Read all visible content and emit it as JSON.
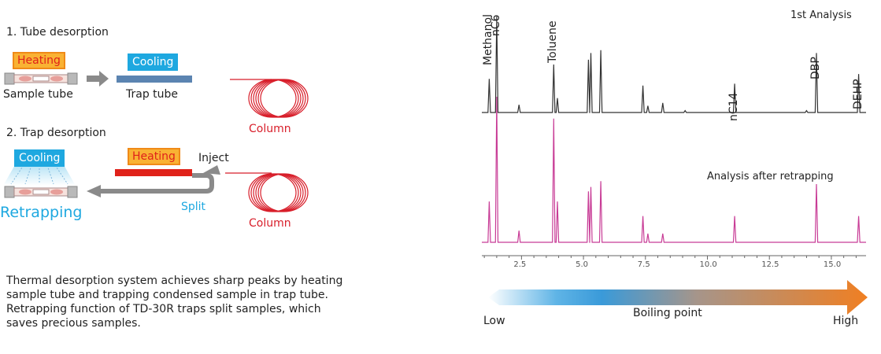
{
  "diagram": {
    "step1": {
      "title": "1. Tube desorption",
      "heating": "Heating",
      "cooling": "Cooling",
      "sample_tube": "Sample tube",
      "trap_tube": "Trap tube",
      "column": "Column"
    },
    "step2": {
      "title": "2. Trap desorption",
      "cooling": "Cooling",
      "heating": "Heating",
      "inject": "Inject",
      "split": "Split",
      "retrapping": "Retrapping",
      "column": "Column"
    },
    "description": [
      "Thermal desorption system achieves sharp peaks by heating",
      "sample tube and trapping condensed sample in trap tube.",
      "Retrapping function of TD-30R traps split samples, which",
      "saves precious samples."
    ],
    "colors": {
      "heating_fill": "#f9b233",
      "heating_text": "#e0221a",
      "cooling": "#1ea8e0",
      "column": "#d81e2a",
      "arrow": "#8a8a8a",
      "trap_tube": "#5b84b1"
    }
  },
  "chart_data": {
    "type": "line",
    "x_ticks": [
      "2.5",
      "5.0",
      "7.5",
      "10.0",
      "12.5",
      "15.0"
    ],
    "peak_labels": [
      "Methanol",
      "nC6",
      "Toluene",
      "nC14",
      "DBP",
      "DEHP"
    ],
    "series": [
      {
        "name": "1st Analysis",
        "color": "#333333",
        "peaks": [
          [
            1.2,
            0.35
          ],
          [
            1.5,
            1.0
          ],
          [
            2.4,
            0.08
          ],
          [
            3.8,
            0.5
          ],
          [
            3.95,
            0.15
          ],
          [
            5.2,
            0.55
          ],
          [
            5.3,
            0.62
          ],
          [
            5.7,
            0.65
          ],
          [
            7.4,
            0.28
          ],
          [
            7.6,
            0.07
          ],
          [
            8.2,
            0.1
          ],
          [
            9.1,
            0.02
          ],
          [
            11.1,
            0.3
          ],
          [
            14.0,
            0.02
          ],
          [
            14.4,
            0.62
          ],
          [
            16.1,
            0.4
          ]
        ]
      },
      {
        "name": "Analysis after retrapping",
        "color": "#c83c96",
        "peaks": [
          [
            1.2,
            0.28
          ],
          [
            1.5,
            1.0
          ],
          [
            2.4,
            0.08
          ],
          [
            3.8,
            0.85
          ],
          [
            3.95,
            0.28
          ],
          [
            5.2,
            0.35
          ],
          [
            5.3,
            0.38
          ],
          [
            5.7,
            0.42
          ],
          [
            7.4,
            0.18
          ],
          [
            7.6,
            0.06
          ],
          [
            8.2,
            0.06
          ],
          [
            11.1,
            0.18
          ],
          [
            14.4,
            0.4
          ],
          [
            16.1,
            0.18
          ]
        ]
      }
    ],
    "axis": {
      "low": "Low",
      "label": "Boiling point",
      "high": "High"
    }
  }
}
